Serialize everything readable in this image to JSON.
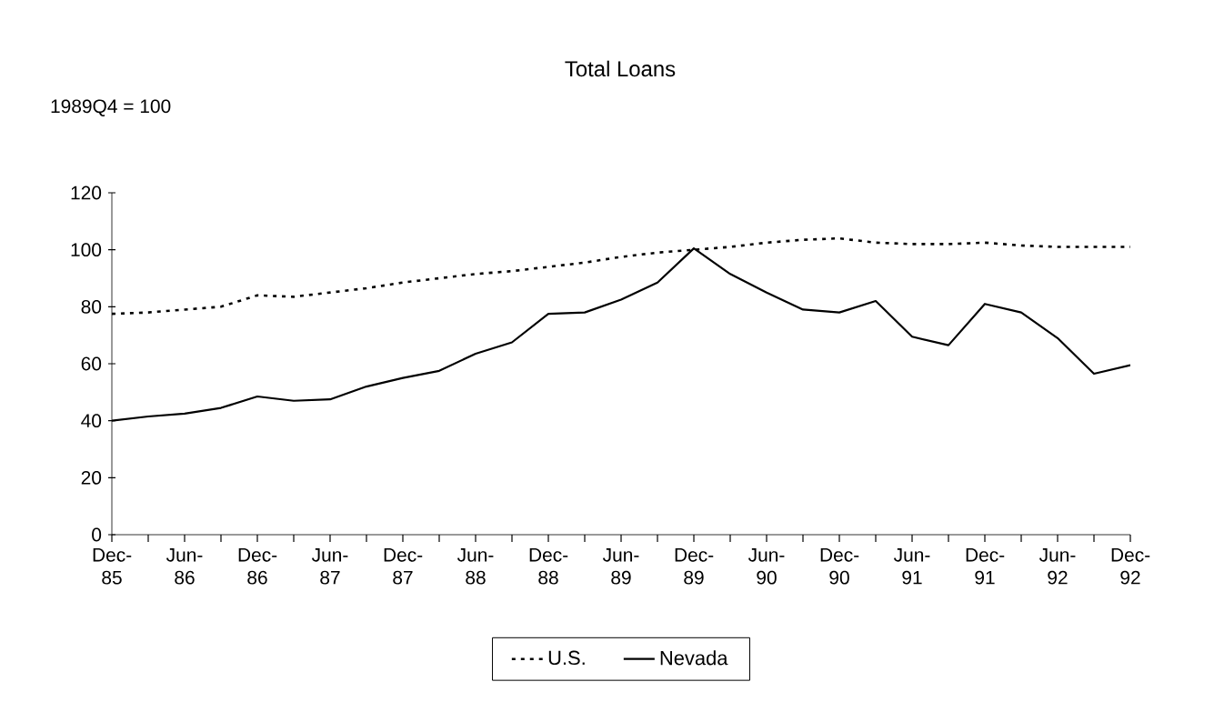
{
  "chart_data": {
    "type": "line",
    "title": "Total Loans",
    "ylabel": "1989Q4 = 100",
    "categories": [
      "Dec-85",
      null,
      "Jun-86",
      null,
      "Dec-86",
      null,
      "Jun-87",
      null,
      "Dec-87",
      null,
      "Jun-88",
      null,
      "Dec-88",
      null,
      "Jun-89",
      null,
      "Dec-89",
      null,
      "Jun-90",
      null,
      "Dec-90",
      null,
      "Jun-91",
      null,
      "Dec-91",
      null,
      "Jun-92",
      null,
      "Dec-92"
    ],
    "series": [
      {
        "name": "U.S.",
        "color": "#000000",
        "line_style": "dotted",
        "values": [
          77.5,
          78,
          79,
          80,
          84,
          83.5,
          85,
          86.5,
          88.5,
          90,
          91.5,
          92.5,
          94,
          95.5,
          97.5,
          99,
          100,
          101,
          102.5,
          103.5,
          104,
          102.5,
          102,
          102,
          102.5,
          101.5,
          101,
          101,
          101
        ]
      },
      {
        "name": "Nevada",
        "color": "#000000",
        "line_style": "solid",
        "values": [
          40,
          41.5,
          42.5,
          44.5,
          48.5,
          47,
          47.5,
          52,
          55,
          57.5,
          63.5,
          67.5,
          77.5,
          78,
          82.5,
          88.5,
          100.5,
          91.5,
          85,
          79,
          78,
          82,
          69.5,
          66.5,
          81,
          78,
          69,
          56.5,
          59.5
        ]
      }
    ],
    "ylim": [
      0,
      120
    ],
    "yticks": [
      0,
      20,
      40,
      60,
      80,
      100,
      120
    ],
    "grid": false,
    "legend": "bottom",
    "marker": "none"
  }
}
